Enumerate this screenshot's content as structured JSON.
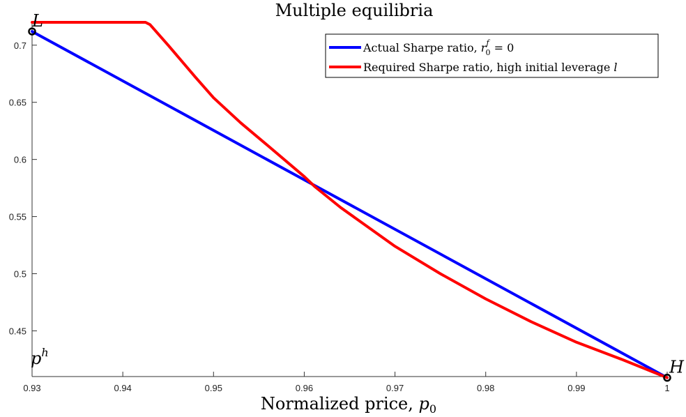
{
  "chart_data": {
    "type": "line",
    "title": "Multiple equilibria",
    "xlabel_text": "Normalized price, ",
    "xlabel_var": "p",
    "xlabel_sub": "0",
    "ylabel": "",
    "xlim": [
      0.93,
      1.0
    ],
    "ylim": [
      0.41,
      0.72
    ],
    "x_ticks": [
      0.93,
      0.94,
      0.95,
      0.96,
      0.97,
      0.98,
      0.99,
      1.0
    ],
    "x_tick_labels": [
      "0.93",
      "0.94",
      "0.95",
      "0.96",
      "0.97",
      "0.98",
      "0.99",
      "1"
    ],
    "y_ticks": [
      0.45,
      0.5,
      0.55,
      0.6,
      0.65,
      0.7
    ],
    "y_tick_labels": [
      "0.45",
      "0.5",
      "0.55",
      "0.6",
      "0.65",
      "0.7"
    ],
    "grid": false,
    "legend_position": "top-right",
    "series": [
      {
        "name": "Actual Sharpe ratio, r0f = 0",
        "color": "#0000ff",
        "x": [
          0.93,
          1.0
        ],
        "y": [
          0.712,
          0.409
        ]
      },
      {
        "name": "Required Sharpe ratio, high initial leverage l",
        "color": "#ff0000",
        "x": [
          0.93,
          0.9425,
          0.943,
          0.945,
          0.948,
          0.95,
          0.953,
          0.956,
          0.96,
          0.9612,
          0.964,
          0.97,
          0.975,
          0.98,
          0.985,
          0.99,
          0.995,
          1.0
        ],
        "y": [
          0.72,
          0.72,
          0.718,
          0.7,
          0.672,
          0.654,
          0.632,
          0.612,
          0.585,
          0.576,
          0.558,
          0.524,
          0.5,
          0.478,
          0.458,
          0.44,
          0.425,
          0.409
        ]
      }
    ],
    "legend": {
      "blue_text": "Actual Sharpe ratio, ",
      "blue_var": "r",
      "blue_sup": "f",
      "blue_sub": "0",
      "blue_tail": " = 0",
      "red_text": "Required Sharpe ratio, high initial leverage ",
      "red_var": "l"
    },
    "points": [
      {
        "label": "L",
        "x": 0.93,
        "y": 0.712
      },
      {
        "label": "H",
        "x": 1.0,
        "y": 0.409
      }
    ],
    "annotation_ph": {
      "base": "p",
      "sup": "h"
    }
  }
}
